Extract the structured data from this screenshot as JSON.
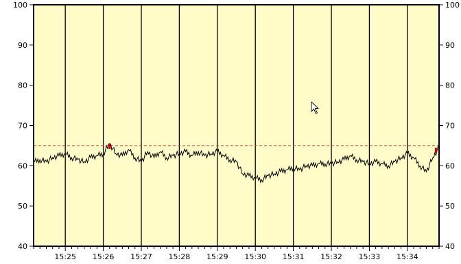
{
  "colors": {
    "plot_background": "#fffcc8",
    "frame": "#000000",
    "trace": "#000000",
    "threshold_line": "#d23a3a",
    "alarm_marker": "#d40000"
  },
  "cursor": {
    "icon": "arrow-cursor-icon"
  },
  "chart_data": {
    "type": "line",
    "title": "",
    "xlabel": "",
    "ylabel": "",
    "ylim": [
      40,
      100
    ],
    "xlim": [
      "15:24:10",
      "15:34:50"
    ],
    "grid": "vertical lines at each minute",
    "y_ticks": [
      40,
      50,
      60,
      70,
      80,
      90,
      100
    ],
    "y_tick_labels": [
      "40",
      "50",
      "60",
      "70",
      "80",
      "90",
      "100"
    ],
    "right_y_tick_labels": [
      "40",
      "50",
      "60",
      "70",
      "80",
      "90",
      "100"
    ],
    "x_ticks": [
      "15:25",
      "15:26",
      "15:27",
      "15:28",
      "15:29",
      "15:30",
      "15:31",
      "15:32",
      "15:33",
      "15:34"
    ],
    "threshold": {
      "value": 65,
      "style": "dashed"
    },
    "alarm_markers": [
      {
        "x": "15:26:10",
        "y": 65.5
      },
      {
        "x": "15:34:45",
        "y": 64.5
      }
    ],
    "series": [
      {
        "x": [
          "15:24:10",
          "15:24:20",
          "15:24:30",
          "15:24:40",
          "15:24:50",
          "15:25:00",
          "15:25:10",
          "15:25:20",
          "15:25:30",
          "15:25:40",
          "15:25:50",
          "15:26:00",
          "15:26:10",
          "15:26:20",
          "15:26:30",
          "15:26:40",
          "15:26:50",
          "15:27:00",
          "15:27:10",
          "15:27:20",
          "15:27:30",
          "15:27:40",
          "15:27:50",
          "15:28:00",
          "15:28:10",
          "15:28:20",
          "15:28:30",
          "15:28:40",
          "15:28:50",
          "15:29:00",
          "15:29:10",
          "15:29:20",
          "15:29:30",
          "15:29:40",
          "15:29:50",
          "15:30:00",
          "15:30:10",
          "15:30:20",
          "15:30:30",
          "15:30:40",
          "15:30:50",
          "15:31:00",
          "15:31:10",
          "15:31:20",
          "15:31:30",
          "15:31:40",
          "15:31:50",
          "15:32:00",
          "15:32:10",
          "15:32:20",
          "15:32:30",
          "15:32:40",
          "15:32:50",
          "15:33:00",
          "15:33:10",
          "15:33:20",
          "15:33:30",
          "15:33:40",
          "15:33:50",
          "15:34:00",
          "15:34:10",
          "15:34:20",
          "15:34:30",
          "15:34:40",
          "15:34:50"
        ],
        "values": [
          61,
          61.5,
          61,
          62,
          62.5,
          63,
          62,
          61.5,
          61,
          62,
          62.5,
          63,
          65.5,
          63,
          62.5,
          64,
          62,
          61,
          63.5,
          62,
          63.5,
          62,
          62.5,
          63,
          63.5,
          62.5,
          63.5,
          62.5,
          63,
          63.5,
          62.5,
          61.5,
          61,
          58,
          57.5,
          57,
          56.5,
          57.5,
          58,
          58.5,
          59,
          59.5,
          59,
          60,
          60,
          60.5,
          60.5,
          60.5,
          61,
          61.5,
          62.5,
          61.5,
          61,
          60.5,
          61,
          60.5,
          60,
          61,
          62,
          63,
          62,
          60,
          58.5,
          62,
          64.5
        ]
      }
    ]
  }
}
